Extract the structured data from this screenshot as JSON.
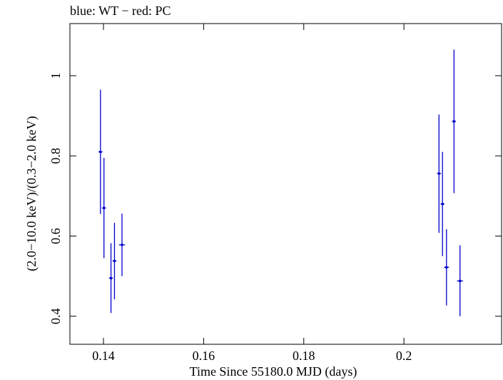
{
  "chart_data": {
    "type": "scatter",
    "title": "blue: WT − red: PC",
    "xlabel": "Time Since 55180.0 MJD (days)",
    "ylabel": "(2.0−10.0 keV)/(0.3−2.0 keV)",
    "xlim": [
      0.1333,
      0.2195
    ],
    "ylim": [
      0.33,
      1.13
    ],
    "x_ticks": [
      0.14,
      0.16,
      0.18,
      0.2
    ],
    "x_tick_labels": [
      "0.14",
      "0.16",
      "0.18",
      "0.2"
    ],
    "y_ticks": [
      0.4,
      0.6,
      0.8,
      1.0
    ],
    "y_tick_labels": [
      "0.4",
      "0.6",
      "0.8",
      "1"
    ],
    "grid": false,
    "series": [
      {
        "color": "#0000cc",
        "points": [
          {
            "x": 0.1394,
            "y": 0.81,
            "ylo": 0.655,
            "yhi": 0.965,
            "xerr": 0.0004
          },
          {
            "x": 0.1401,
            "y": 0.67,
            "ylo": 0.545,
            "yhi": 0.795,
            "xerr": 0.0004
          },
          {
            "x": 0.1415,
            "y": 0.495,
            "ylo": 0.408,
            "yhi": 0.582,
            "xerr": 0.0004
          },
          {
            "x": 0.1422,
            "y": 0.538,
            "ylo": 0.442,
            "yhi": 0.633,
            "xerr": 0.0004
          },
          {
            "x": 0.1437,
            "y": 0.578,
            "ylo": 0.5,
            "yhi": 0.656,
            "xerr": 0.0006
          },
          {
            "x": 0.207,
            "y": 0.756,
            "ylo": 0.608,
            "yhi": 0.903,
            "xerr": 0.0004
          },
          {
            "x": 0.2077,
            "y": 0.68,
            "ylo": 0.55,
            "yhi": 0.81,
            "xerr": 0.0004
          },
          {
            "x": 0.2085,
            "y": 0.522,
            "ylo": 0.427,
            "yhi": 0.617,
            "xerr": 0.0005
          },
          {
            "x": 0.21,
            "y": 0.886,
            "ylo": 0.707,
            "yhi": 1.065,
            "xerr": 0.0004
          },
          {
            "x": 0.2112,
            "y": 0.488,
            "ylo": 0.4,
            "yhi": 0.577,
            "xerr": 0.0006
          }
        ]
      }
    ]
  }
}
